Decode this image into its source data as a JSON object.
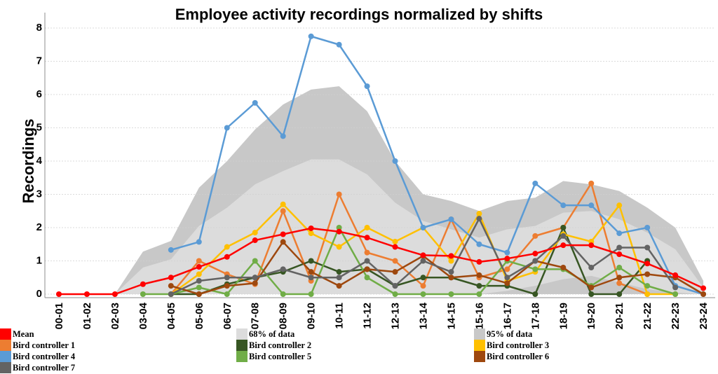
{
  "chart_data": {
    "type": "line",
    "title": "Employee activity recordings normalized by shifts",
    "xlabel": "",
    "ylabel": "Recordings",
    "ylim": [
      0,
      8
    ],
    "yticks": [
      "0",
      "1",
      "2",
      "3",
      "4",
      "5",
      "6",
      "7",
      "8"
    ],
    "grid": true,
    "legend_position": "bottom",
    "categories": [
      "00-01",
      "01-02",
      "02-03",
      "03-04",
      "04-05",
      "05-06",
      "06-07",
      "07-08",
      "08-09",
      "09-10",
      "10-11",
      "11-12",
      "12-13",
      "13-14",
      "14-15",
      "15-16",
      "16-17",
      "17-18",
      "18-19",
      "19-20",
      "20-21",
      "21-22",
      "22-23",
      "23-24"
    ],
    "bands": [
      {
        "name": "95% of data",
        "color": "#c8c8c8",
        "lower": [
          null,
          null,
          0,
          0,
          0,
          0,
          0,
          0,
          0,
          0,
          0,
          0,
          0,
          0,
          0,
          0,
          0,
          0,
          0,
          0,
          0,
          0,
          0,
          0
        ],
        "upper": [
          null,
          null,
          0,
          1.28,
          1.6,
          3.2,
          4.0,
          4.95,
          5.7,
          6.15,
          6.25,
          5.5,
          4.0,
          3.0,
          2.8,
          2.5,
          2.8,
          2.9,
          3.4,
          3.3,
          3.1,
          2.6,
          2.0,
          0.4
        ]
      },
      {
        "name": "68% of data",
        "color": "#dcdcdc",
        "lower": [
          null,
          null,
          0,
          0,
          0,
          0,
          0,
          0,
          0,
          0,
          0,
          0,
          0,
          0,
          0,
          0,
          0.1,
          0.25,
          0.45,
          0.55,
          0.35,
          0.15,
          0.05,
          0
        ],
        "upper": [
          null,
          null,
          0,
          0.8,
          1.05,
          2.05,
          2.6,
          3.3,
          3.7,
          4.05,
          4.05,
          3.6,
          2.75,
          2.2,
          1.95,
          1.7,
          1.95,
          2.05,
          2.45,
          2.5,
          2.25,
          1.85,
          1.35,
          0.2
        ]
      }
    ],
    "series": [
      {
        "name": "Mean",
        "color": "#ff0000",
        "values": [
          0,
          0,
          0,
          0.3,
          0.5,
          0.82,
          1.12,
          1.62,
          1.8,
          1.98,
          1.88,
          1.7,
          1.42,
          1.17,
          1.15,
          0.97,
          1.07,
          1.22,
          1.47,
          1.47,
          1.2,
          0.92,
          0.57,
          0.18
        ]
      },
      {
        "name": "Bird controller 1",
        "color": "#ed7d31",
        "values": [
          null,
          null,
          null,
          null,
          0,
          1.0,
          0.6,
          0.3,
          2.5,
          0.4,
          3.0,
          1.25,
          1.0,
          0.25,
          2.25,
          0.5,
          0.75,
          1.75,
          2.0,
          3.33,
          0.33,
          0,
          null,
          null
        ]
      },
      {
        "name": "Bird controller 2",
        "color": "#375623",
        "values": [
          null,
          null,
          null,
          null,
          0,
          0,
          0.3,
          0.5,
          0.67,
          1.0,
          0.67,
          0.75,
          0.25,
          0.5,
          0.5,
          0.25,
          0.25,
          0,
          2.0,
          0,
          0,
          1.0,
          null,
          null
        ]
      },
      {
        "name": "Bird controller 3",
        "color": "#ffc000",
        "values": [
          null,
          null,
          null,
          null,
          0,
          0.6,
          1.42,
          1.85,
          2.7,
          1.83,
          1.42,
          2.0,
          1.58,
          2.0,
          1.0,
          2.42,
          0.4,
          0.67,
          1.8,
          1.58,
          2.67,
          0,
          0,
          null
        ]
      },
      {
        "name": "Bird controller 4",
        "color": "#5b9bd5",
        "values": [
          null,
          null,
          null,
          null,
          1.33,
          1.57,
          5.0,
          5.75,
          4.75,
          7.75,
          7.5,
          6.25,
          4.0,
          2.0,
          2.25,
          1.5,
          1.25,
          3.33,
          2.67,
          2.67,
          1.83,
          2.0,
          0.25,
          0
        ]
      },
      {
        "name": "Bird controller 5",
        "color": "#70ad47",
        "values": [
          null,
          null,
          null,
          0,
          0,
          0.2,
          0,
          1.0,
          0,
          0,
          2.0,
          0.5,
          0,
          0,
          0,
          0,
          1.0,
          0.75,
          0.75,
          0.25,
          0.8,
          0.25,
          0,
          null
        ]
      },
      {
        "name": "Bird controller 6",
        "color": "#9e480e",
        "values": [
          null,
          null,
          null,
          null,
          0.25,
          0,
          0.25,
          0.33,
          1.57,
          0.67,
          0.25,
          0.75,
          0.67,
          1.15,
          0.5,
          0.57,
          0.33,
          1.0,
          0.8,
          0.2,
          0.5,
          0.6,
          0.5,
          0
        ]
      },
      {
        "name": "Bird controller 7",
        "color": "#636363",
        "values": [
          null,
          null,
          null,
          null,
          0,
          0.4,
          0.5,
          0.5,
          0.75,
          0.5,
          0.5,
          1.0,
          0.25,
          1.0,
          0.67,
          2.27,
          0.5,
          1.0,
          1.75,
          0.8,
          1.4,
          1.4,
          0.2,
          null
        ]
      }
    ]
  },
  "legend": {
    "items": [
      {
        "label": "Mean",
        "color": "#ff0000",
        "col": 0,
        "row": 0
      },
      {
        "label": "Bird controller 1",
        "color": "#ed7d31",
        "col": 0,
        "row": 1
      },
      {
        "label": "Bird controller 4",
        "color": "#5b9bd5",
        "col": 0,
        "row": 2
      },
      {
        "label": "Bird controller 7",
        "color": "#636363",
        "col": 0,
        "row": 3
      },
      {
        "label": "68% of data",
        "color": "#dcdcdc",
        "col": 1,
        "row": 0
      },
      {
        "label": "Bird controller 2",
        "color": "#375623",
        "col": 1,
        "row": 1
      },
      {
        "label": "Bird controller 5",
        "color": "#70ad47",
        "col": 1,
        "row": 2
      },
      {
        "label": "95% of data",
        "color": "#c8c8c8",
        "col": 2,
        "row": 0
      },
      {
        "label": "Bird controller 3",
        "color": "#ffc000",
        "col": 2,
        "row": 1
      },
      {
        "label": "Bird controller 6",
        "color": "#9e480e",
        "col": 2,
        "row": 2
      }
    ]
  }
}
